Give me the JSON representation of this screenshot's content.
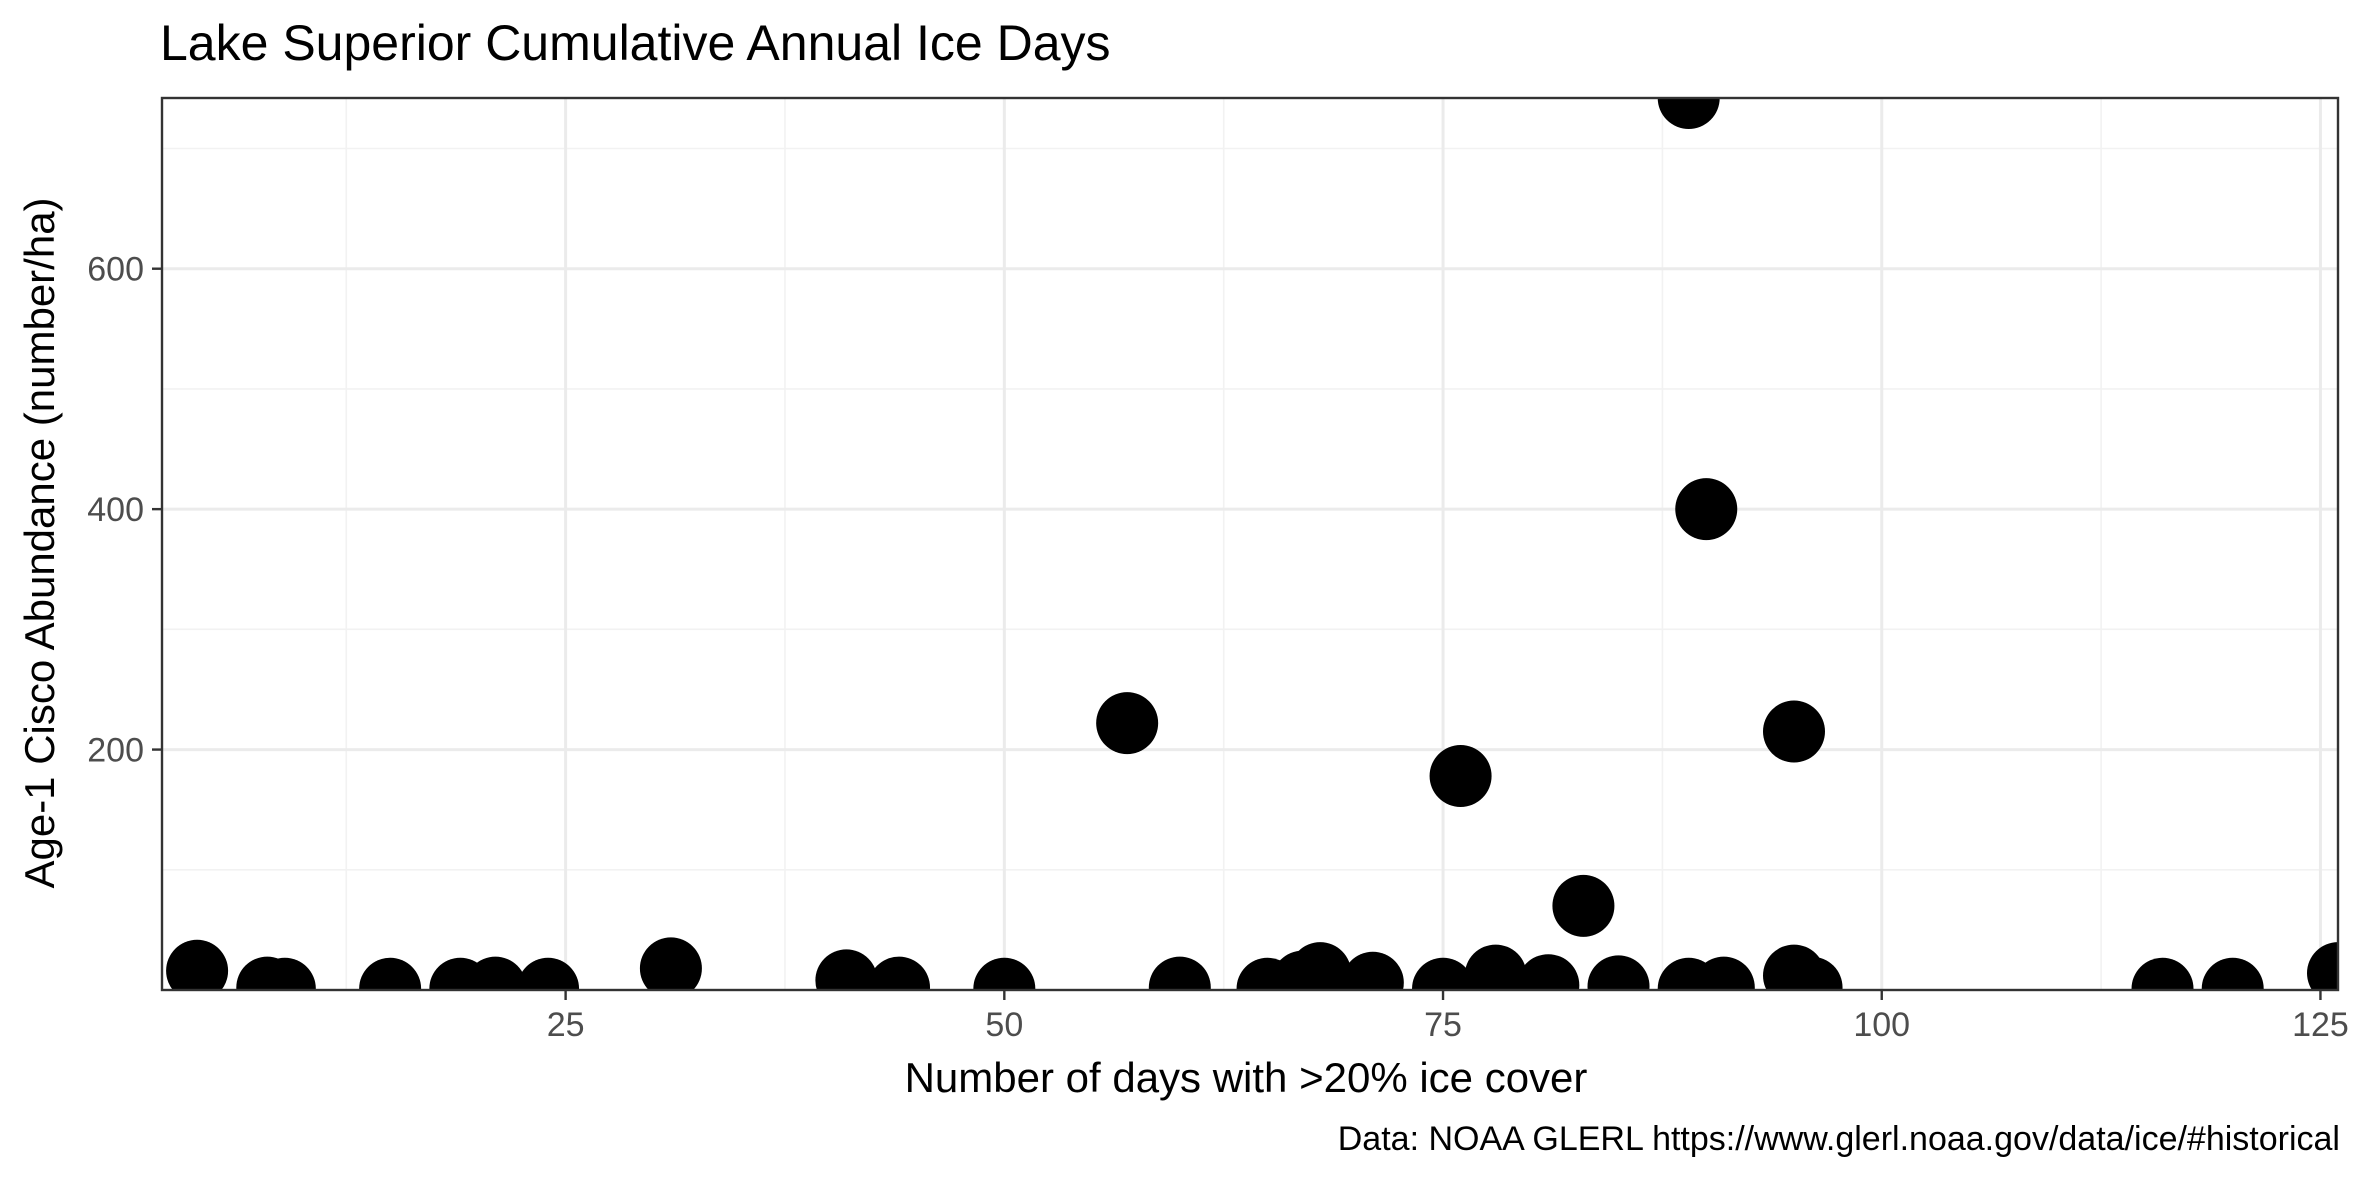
{
  "chart_data": {
    "type": "scatter",
    "title": "Lake Superior Cumulative Annual Ice Days",
    "xlabel": "Number of days with >20% ice cover",
    "ylabel": "Age-1 Cisco Abundance (number/ha)",
    "caption": "Data: NOAA GLERL https://www.glerl.noaa.gov/data/ice/#historical",
    "xlim": [
      2,
      126
    ],
    "ylim": [
      0,
      742
    ],
    "x_ticks": [
      25,
      50,
      75,
      100,
      125
    ],
    "x_tick_labels": [
      "25",
      "50",
      "75",
      "100",
      "125"
    ],
    "y_ticks": [
      200,
      400,
      600
    ],
    "y_tick_labels": [
      "200",
      "400",
      "600"
    ],
    "grid": true,
    "point_color": "#000000",
    "points": [
      {
        "x": 4,
        "y": 16
      },
      {
        "x": 8,
        "y": 2
      },
      {
        "x": 9,
        "y": 1
      },
      {
        "x": 15,
        "y": 1
      },
      {
        "x": 19,
        "y": 1
      },
      {
        "x": 21,
        "y": 2
      },
      {
        "x": 24,
        "y": 1
      },
      {
        "x": 31,
        "y": 18
      },
      {
        "x": 41,
        "y": 8
      },
      {
        "x": 44,
        "y": 2
      },
      {
        "x": 50,
        "y": 1
      },
      {
        "x": 57,
        "y": 222
      },
      {
        "x": 60,
        "y": 2
      },
      {
        "x": 65,
        "y": 1
      },
      {
        "x": 67,
        "y": 7
      },
      {
        "x": 68,
        "y": 14
      },
      {
        "x": 71,
        "y": 6
      },
      {
        "x": 75,
        "y": 1
      },
      {
        "x": 76,
        "y": 178
      },
      {
        "x": 78,
        "y": 12
      },
      {
        "x": 81,
        "y": 4
      },
      {
        "x": 83,
        "y": 70
      },
      {
        "x": 85,
        "y": 3
      },
      {
        "x": 89,
        "y": 742
      },
      {
        "x": 89,
        "y": 1
      },
      {
        "x": 90,
        "y": 400
      },
      {
        "x": 91,
        "y": 2
      },
      {
        "x": 95,
        "y": 215
      },
      {
        "x": 95,
        "y": 12
      },
      {
        "x": 96,
        "y": 2
      },
      {
        "x": 116,
        "y": 1
      },
      {
        "x": 120,
        "y": 1
      },
      {
        "x": 126,
        "y": 14
      }
    ]
  }
}
